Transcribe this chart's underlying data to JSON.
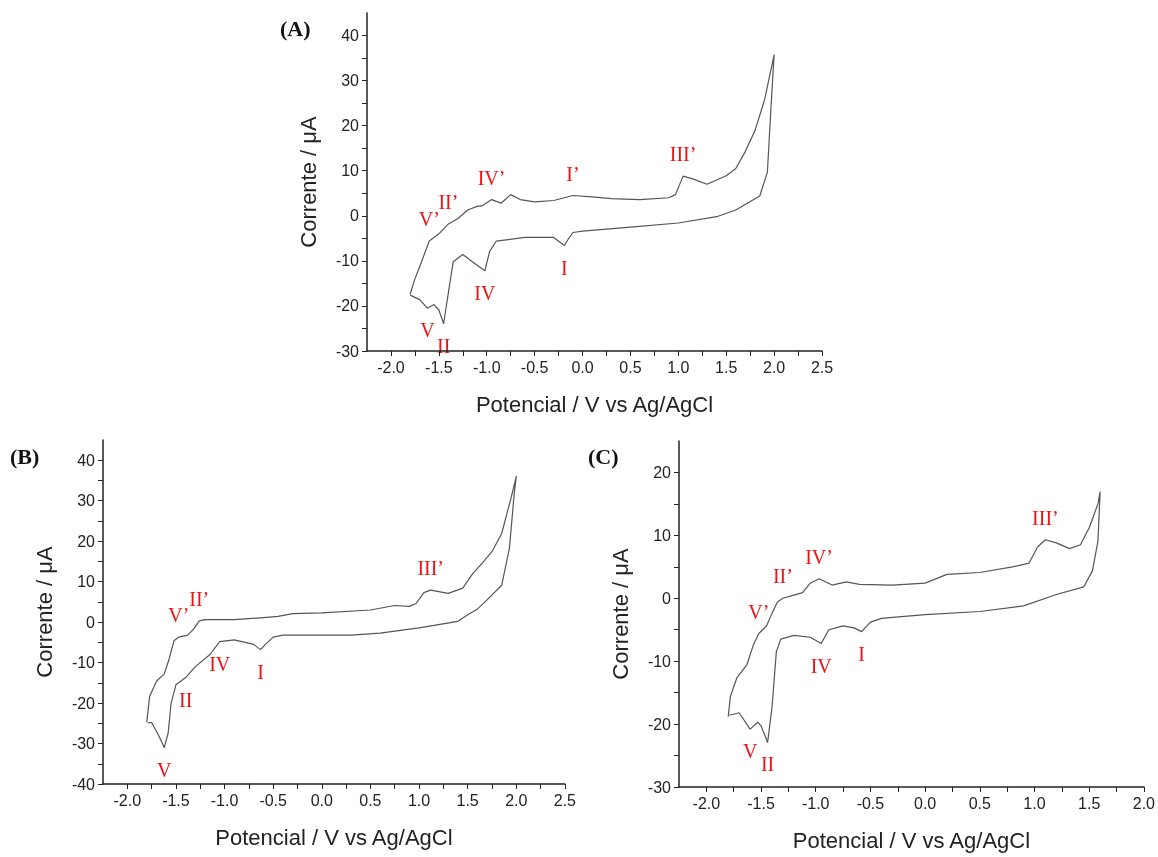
{
  "chart_data": [
    {
      "type": "line",
      "title": "(A)",
      "xlabel": "Potencial / V vs Ag/AgCl",
      "ylabel": "Corrente / μA",
      "xlim": [
        -2.25,
        2.5
      ],
      "ylim": [
        -30,
        45
      ],
      "xticks": [
        {
          "value": -2,
          "label": "-2.0"
        },
        {
          "value": -1.75,
          "label": null
        },
        {
          "value": -1.5,
          "label": "-1.5"
        },
        {
          "value": -1.25,
          "label": null
        },
        {
          "value": -1,
          "label": "-1.0"
        },
        {
          "value": -0.75,
          "label": null
        },
        {
          "value": -0.5,
          "label": "-0.5"
        },
        {
          "value": -0.25,
          "label": null
        },
        {
          "value": 0,
          "label": "0.0"
        },
        {
          "value": 0.25,
          "label": null
        },
        {
          "value": 0.5,
          "label": "0.5"
        },
        {
          "value": 0.75,
          "label": null
        },
        {
          "value": 1,
          "label": "1.0"
        },
        {
          "value": 1.25,
          "label": null
        },
        {
          "value": 1.5,
          "label": "1.5"
        },
        {
          "value": 1.75,
          "label": null
        },
        {
          "value": 2,
          "label": "2.0"
        },
        {
          "value": 2.25,
          "label": null
        },
        {
          "value": 2.5,
          "label": "2.5"
        }
      ],
      "yticks": [
        -30,
        {
          "value": -25,
          "label": null
        },
        -20,
        {
          "value": -15,
          "label": null
        },
        -10,
        {
          "value": -5,
          "label": null
        },
        0,
        {
          "value": 5,
          "label": null
        },
        10,
        {
          "value": 15,
          "label": null
        },
        20,
        {
          "value": 25,
          "label": null
        },
        30,
        {
          "value": 35,
          "label": null
        },
        40
      ],
      "series": [
        {
          "color": "#555555",
          "x": [
            -1.8,
            -1.75,
            -1.7,
            -1.6,
            -1.5,
            -1.4,
            -1.3,
            -1.2,
            -1.1,
            -1.05,
            -0.95,
            -0.85,
            -0.75,
            -0.65,
            -0.5,
            -0.3,
            -0.1,
            0.1,
            0.3,
            0.6,
            0.9,
            0.97,
            1.05,
            1.15,
            1.3,
            1.5,
            1.6,
            1.7,
            1.8,
            1.9,
            2.0,
            1.97,
            1.93,
            1.85,
            1.6,
            1.4,
            1.0,
            0.5,
            0.0,
            -0.1,
            -0.15,
            -0.19,
            -0.3,
            -0.6,
            -0.9,
            -0.97,
            -1.02,
            -1.15,
            -1.25,
            -1.35,
            -1.4,
            -1.45,
            -1.5,
            -1.55,
            -1.62,
            -1.7,
            -1.8
          ],
          "values": [
            -17.4,
            -14,
            -11.3,
            -5.6,
            -4,
            -1.8,
            -0.6,
            1.3,
            2.1,
            2.2,
            3.6,
            2.8,
            4.7,
            3.6,
            3.1,
            3.4,
            4.5,
            4.2,
            3.8,
            3.6,
            4.0,
            4.7,
            8.8,
            8.2,
            7.0,
            8.9,
            10.5,
            14.3,
            18.9,
            25.7,
            35.7,
            25,
            9.7,
            4.4,
            1.3,
            -0.2,
            -1.6,
            -2.5,
            -3.4,
            -3.7,
            -5.2,
            -6.6,
            -4.8,
            -4.8,
            -5.6,
            -7.9,
            -12.2,
            -10.2,
            -8.6,
            -10.2,
            -17,
            -23.9,
            -20.9,
            -19.7,
            -20.5,
            -18.6,
            -17.6
          ]
        }
      ],
      "annotations": [
        {
          "text": "V’",
          "x": -1.6,
          "y": -5.6
        },
        {
          "text": "II’",
          "x": -1.4,
          "y": -1.8
        },
        {
          "text": "IV’",
          "x": -0.95,
          "y": 3.6
        },
        {
          "text": "I’",
          "x": -0.1,
          "y": 4.5
        },
        {
          "text": "III’",
          "x": 1.05,
          "y": 8.8
        },
        {
          "text": "I",
          "x": -0.19,
          "y": -6.6
        },
        {
          "text": "IV",
          "x": -1.02,
          "y": -12.2
        },
        {
          "text": "V",
          "x": -1.62,
          "y": -20.5
        },
        {
          "text": "II",
          "x": -1.45,
          "y": -23.9
        }
      ]
    },
    {
      "type": "line",
      "title": "(B)",
      "xlabel": "Potencial / V vs Ag/AgCl",
      "ylabel": "Corrente / μA",
      "xlim": [
        -2.25,
        2.5
      ],
      "ylim": [
        -40,
        45
      ],
      "xticks": [
        {
          "value": -2,
          "label": "-2.0"
        },
        {
          "value": -1.75,
          "label": null
        },
        {
          "value": -1.5,
          "label": "-1.5"
        },
        {
          "value": -1.25,
          "label": null
        },
        {
          "value": -1,
          "label": "-1.0"
        },
        {
          "value": -0.75,
          "label": null
        },
        {
          "value": -0.5,
          "label": "-0.5"
        },
        {
          "value": -0.25,
          "label": null
        },
        {
          "value": 0,
          "label": "0.0"
        },
        {
          "value": 0.25,
          "label": null
        },
        {
          "value": 0.5,
          "label": "0.5"
        },
        {
          "value": 0.75,
          "label": null
        },
        {
          "value": 1,
          "label": "1.0"
        },
        {
          "value": 1.25,
          "label": null
        },
        {
          "value": 1.5,
          "label": "1.5"
        },
        {
          "value": 1.75,
          "label": null
        },
        {
          "value": 2,
          "label": "2.0"
        },
        {
          "value": 2.25,
          "label": null
        },
        {
          "value": 2.5,
          "label": "2.5"
        }
      ],
      "yticks": [
        -40,
        {
          "value": -35,
          "label": null
        },
        -30,
        {
          "value": -25,
          "label": null
        },
        -20,
        {
          "value": -15,
          "label": null
        },
        -10,
        {
          "value": -5,
          "label": null
        },
        0,
        {
          "value": 5,
          "label": null
        },
        10,
        {
          "value": 15,
          "label": null
        },
        20,
        {
          "value": 25,
          "label": null
        },
        30,
        {
          "value": 35,
          "label": null
        },
        40
      ],
      "series": [
        {
          "color": "#555555",
          "x": [
            -1.8,
            -1.77,
            -1.7,
            -1.62,
            -1.57,
            -1.52,
            -1.47,
            -1.38,
            -1.32,
            -1.26,
            -1.2,
            -0.9,
            -0.6,
            -0.45,
            -0.3,
            0.0,
            0.5,
            0.75,
            0.9,
            0.97,
            1.05,
            1.12,
            1.3,
            1.45,
            1.55,
            1.65,
            1.75,
            1.85,
            1.95,
            2.0,
            1.98,
            1.93,
            1.85,
            1.7,
            1.6,
            1.5,
            1.4,
            1.0,
            0.6,
            0.3,
            -0.4,
            -0.5,
            -0.58,
            -0.63,
            -0.7,
            -0.9,
            -1.05,
            -1.15,
            -1.3,
            -1.4,
            -1.5,
            -1.55,
            -1.58,
            -1.62,
            -1.68,
            -1.75,
            -1.79
          ],
          "values": [
            -24.7,
            -18.3,
            -14.6,
            -12.8,
            -9.1,
            -4.6,
            -3.7,
            -3.2,
            -1.8,
            0.3,
            0.6,
            0.6,
            1.1,
            1.4,
            2.1,
            2.3,
            3.0,
            4.1,
            3.9,
            4.6,
            7.3,
            7.9,
            7.1,
            8.4,
            11.9,
            14.6,
            17.4,
            21.9,
            31,
            36,
            32,
            18.3,
            9.1,
            5.5,
            3.2,
            1.8,
            0.2,
            -1.4,
            -2.7,
            -3.2,
            -3.2,
            -3.7,
            -5.5,
            -6.8,
            -5.5,
            -4.4,
            -4.8,
            -8.0,
            -11,
            -13.7,
            -15.5,
            -20.1,
            -27.4,
            -31,
            -27.9,
            -24.8,
            -24.9
          ]
        }
      ],
      "annotations": [
        {
          "text": "V’",
          "x": -1.47,
          "y": -3.7
        },
        {
          "text": "II’",
          "x": -1.26,
          "y": 0.3
        },
        {
          "text": "III’",
          "x": 1.12,
          "y": 7.9
        },
        {
          "text": "IV",
          "x": -1.05,
          "y": -4.8
        },
        {
          "text": "I",
          "x": -0.63,
          "y": -6.8
        },
        {
          "text": "II",
          "x": -1.4,
          "y": -13.7
        },
        {
          "text": "V",
          "x": -1.62,
          "y": -31
        }
      ]
    },
    {
      "type": "line",
      "title": "(C)",
      "xlabel": "Potencial / V vs Ag/AgCl",
      "ylabel": "Corrente / μA",
      "xlim": [
        -2.25,
        2.0
      ],
      "ylim": [
        -30,
        25
      ],
      "xticks": [
        {
          "value": -2,
          "label": "-2.0"
        },
        {
          "value": -1.75,
          "label": null
        },
        {
          "value": -1.5,
          "label": "-1.5"
        },
        {
          "value": -1.25,
          "label": null
        },
        {
          "value": -1,
          "label": "-1.0"
        },
        {
          "value": -0.75,
          "label": null
        },
        {
          "value": -0.5,
          "label": "-0.5"
        },
        {
          "value": -0.25,
          "label": null
        },
        {
          "value": 0,
          "label": "0.0"
        },
        {
          "value": 0.25,
          "label": null
        },
        {
          "value": 0.5,
          "label": "0.5"
        },
        {
          "value": 0.75,
          "label": null
        },
        {
          "value": 1,
          "label": "1.0"
        },
        {
          "value": 1.25,
          "label": null
        },
        {
          "value": 1.5,
          "label": "1.5"
        },
        {
          "value": 1.75,
          "label": null
        },
        {
          "value": 2,
          "label": "2.0"
        }
      ],
      "yticks": [
        -30,
        {
          "value": -25,
          "label": null
        },
        -20,
        {
          "value": -15,
          "label": null
        },
        -10,
        {
          "value": -5,
          "label": null
        },
        0,
        {
          "value": 5,
          "label": null
        },
        10,
        {
          "value": 15,
          "label": null
        },
        20
      ],
      "series": [
        {
          "color": "#555555",
          "x": [
            -1.8,
            -1.78,
            -1.72,
            -1.63,
            -1.57,
            -1.52,
            -1.45,
            -1.4,
            -1.35,
            -1.3,
            -1.2,
            -1.12,
            -1.05,
            -0.97,
            -0.85,
            -0.72,
            -0.6,
            -0.3,
            0.0,
            0.2,
            0.5,
            0.8,
            0.95,
            1.03,
            1.1,
            1.2,
            1.32,
            1.42,
            1.5,
            1.58,
            1.6,
            1.58,
            1.53,
            1.45,
            1.2,
            0.9,
            0.5,
            0.0,
            -0.4,
            -0.5,
            -0.58,
            -0.65,
            -0.75,
            -0.88,
            -0.95,
            -1.05,
            -1.2,
            -1.32,
            -1.36,
            -1.4,
            -1.44,
            -1.5,
            -1.53,
            -1.6,
            -1.7,
            -1.79
          ],
          "values": [
            -18.8,
            -15.6,
            -12.6,
            -10.6,
            -7.4,
            -5.6,
            -4.4,
            -2.4,
            -0.6,
            0,
            0.5,
            0.9,
            2.4,
            3.1,
            2.1,
            2.6,
            2.2,
            2.1,
            2.4,
            3.8,
            4.1,
            5.0,
            5.6,
            8.2,
            9.3,
            8.8,
            7.9,
            8.5,
            11.2,
            15,
            16.9,
            9.1,
            4.4,
            1.8,
            0.6,
            -1.2,
            -2.1,
            -2.6,
            -3.2,
            -3.8,
            -5.3,
            -4.7,
            -4.4,
            -5.0,
            -7.2,
            -6.2,
            -5.9,
            -6.5,
            -8.5,
            -17.4,
            -22.9,
            -20.3,
            -19.7,
            -20.8,
            -18.2,
            -18.6
          ]
        }
      ],
      "annotations": [
        {
          "text": "III’",
          "x": 1.1,
          "y": 9.3
        },
        {
          "text": "IV’",
          "x": -0.97,
          "y": 3.1
        },
        {
          "text": "II’",
          "x": -1.3,
          "y": 0
        },
        {
          "text": "V’",
          "x": -1.52,
          "y": -5.6
        },
        {
          "text": "IV",
          "x": -0.95,
          "y": -7.2
        },
        {
          "text": "I",
          "x": -0.58,
          "y": -5.3
        },
        {
          "text": "V",
          "x": -1.6,
          "y": -20.8
        },
        {
          "text": "II",
          "x": -1.44,
          "y": -22.9
        }
      ]
    }
  ]
}
